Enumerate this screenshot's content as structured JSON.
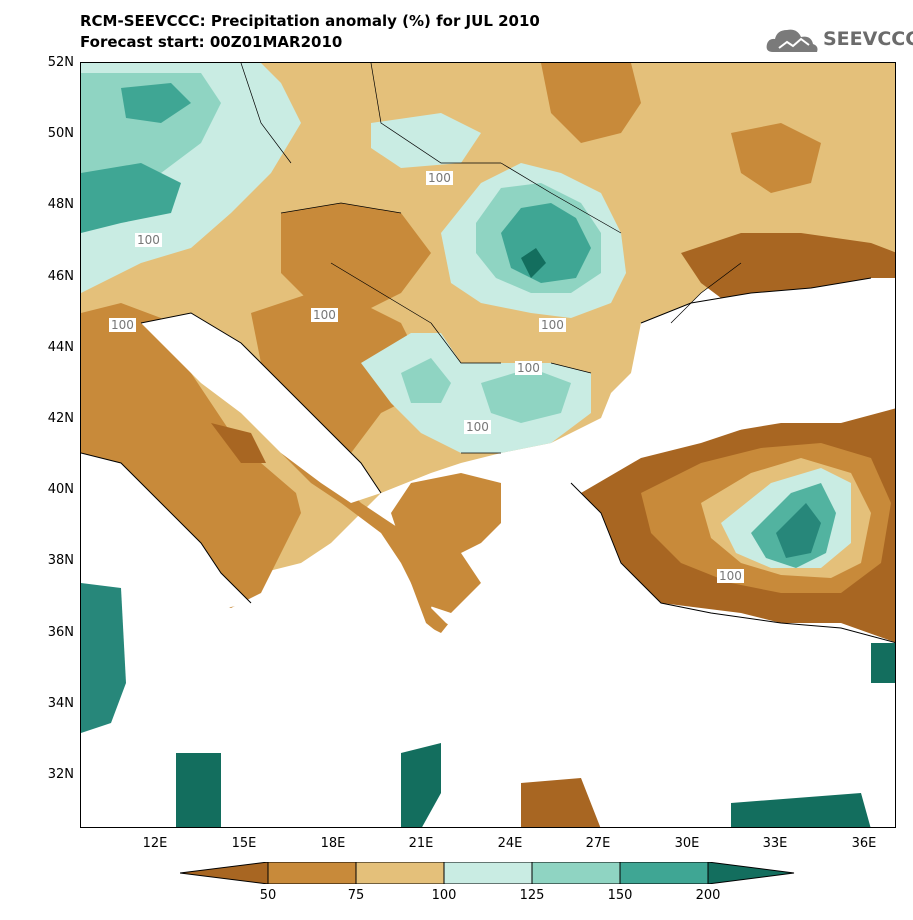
{
  "header": {
    "title": "RCM-SEEVCCC: Precipitation anomaly (%) for JUL 2010",
    "subtitle": "Forecast start: 00Z01MAR2010",
    "logo_text": "SEEVCCC"
  },
  "axes": {
    "lat_labels": [
      "52N",
      "50N",
      "48N",
      "46N",
      "44N",
      "42N",
      "40N",
      "38N",
      "36N",
      "34N",
      "32N"
    ],
    "lon_labels": [
      "12E",
      "15E",
      "18E",
      "21E",
      "24E",
      "27E",
      "30E",
      "33E",
      "36E"
    ]
  },
  "contour_labels": [
    "100",
    "100",
    "100",
    "100",
    "100",
    "100",
    "100",
    "100"
  ],
  "colorbar": {
    "labels": [
      "50",
      "75",
      "100",
      "125",
      "150",
      "200"
    ],
    "colors": [
      "#a86622",
      "#c88a3a",
      "#e4c07a",
      "#c9ece3",
      "#8fd4c2",
      "#52b3a0",
      "#27877a",
      "#136e5e"
    ]
  },
  "palette": {
    "very_dry": "#a86622",
    "dry": "#c88a3a",
    "slightly_dry": "#e4c07a",
    "slightly_wet": "#c9ece3",
    "wet": "#8fd4c2",
    "very_wet": "#3fa694",
    "extreme_wet": "#136e5e"
  }
}
